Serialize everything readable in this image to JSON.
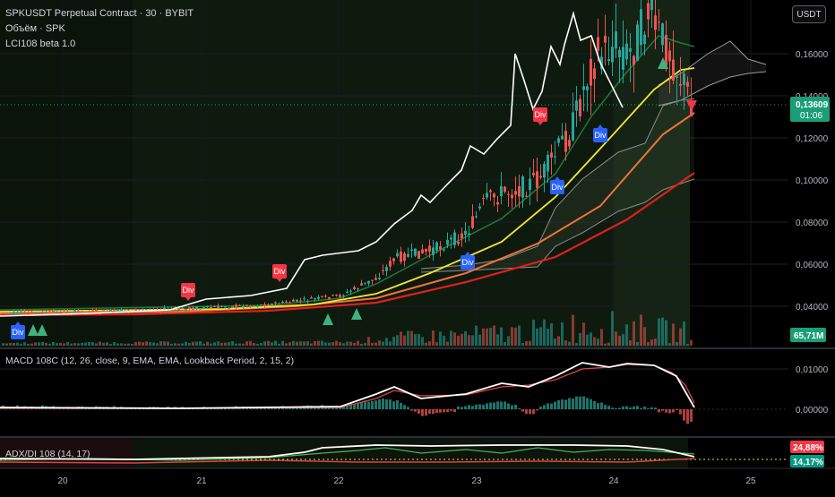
{
  "header": {
    "symbol_line": "SPKUSDT Perpetual Contract · 30 · BYBIT",
    "volume_line": "Объём · SPK",
    "indicator_line": "LCI108 beta 1.0",
    "currency_button": "USDT"
  },
  "price_axis": {
    "ticks": [
      "0,16000",
      "0,14000",
      "0,12000",
      "0,10000",
      "0,08000",
      "0,06000",
      "0,04000"
    ],
    "current_price": "0,13609",
    "countdown": "01:06",
    "volume_value": "65,71M"
  },
  "macd_pane": {
    "title": "MACD 108C (12, 26, close, 9, EMA, EMA, Lookback Period, 2, 15, 2)",
    "ticks": [
      "0,01000",
      "0,00000"
    ]
  },
  "adx_pane": {
    "title": "ADX/DI 108 (14, 17)",
    "value_1": "24,88%",
    "value_2": "14,17%"
  },
  "time_axis": {
    "labels": [
      "20",
      "21",
      "22",
      "23",
      "24",
      "25"
    ]
  },
  "signals": {
    "div_label": "Div",
    "div_count": 8,
    "buy_arrow_count": 5,
    "sell_arrow_count": 1
  },
  "colors": {
    "background": "#000000",
    "candle_up": "#26a69a",
    "candle_down": "#ef5350",
    "white_line": "#ffffff",
    "yellow_ma": "#f5e633",
    "orange_ma": "#f0743a",
    "red_ma": "#e0201c",
    "green_ma": "#1e7a3c",
    "div_bearish": "#f23645",
    "div_bullish": "#2962ff",
    "current_price_badge": "#1b9e77",
    "adx_badge_red": "#f23645",
    "adx_badge_green": "#089981"
  }
}
